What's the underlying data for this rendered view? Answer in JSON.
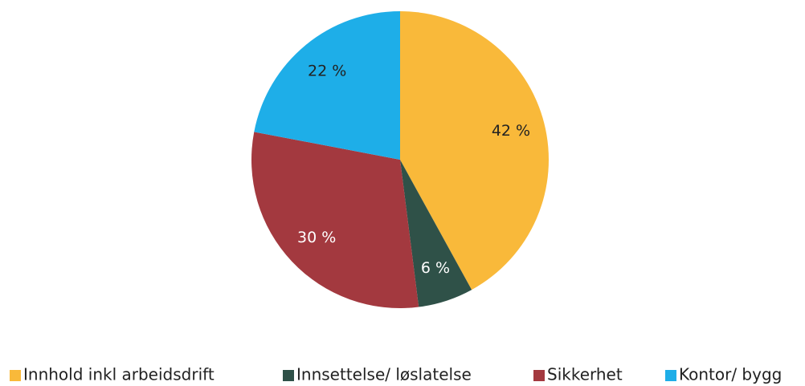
{
  "chart_data": {
    "type": "pie",
    "categories": [
      "Innhold inkl arbeidsdrift",
      "Innsettelse/ løslatelse",
      "Sikkerhet",
      "Kontor/ bygg"
    ],
    "values": [
      42,
      6,
      30,
      22
    ],
    "value_labels": [
      "42 %",
      "6 %",
      "30 %",
      "22 %"
    ],
    "colors": [
      "#f9b93a",
      "#2f5148",
      "#a3393f",
      "#1eaee8"
    ],
    "legend": "bottom"
  }
}
